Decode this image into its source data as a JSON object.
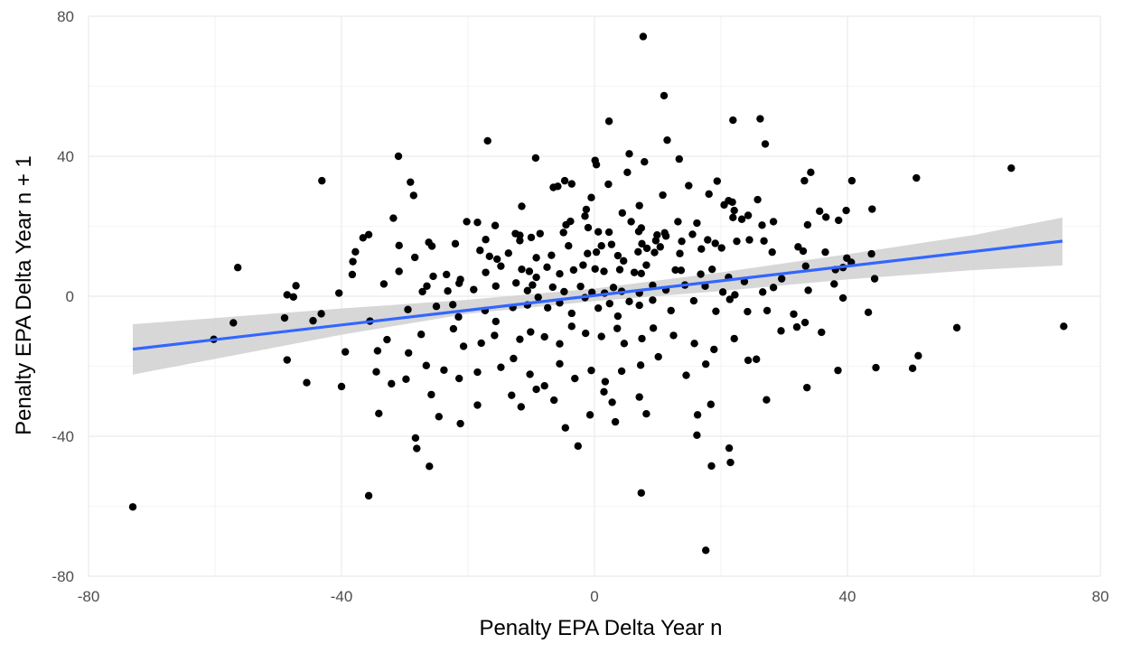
{
  "chart_data": {
    "type": "scatter",
    "title": "",
    "xlabel": "Penalty EPA Delta Year n",
    "ylabel": "Penalty EPA Delta Year n + 1",
    "xlim": [
      -80,
      80
    ],
    "ylim": [
      -80,
      80
    ],
    "x_ticks": [
      -80,
      -40,
      0,
      40,
      80
    ],
    "y_ticks": [
      -80,
      -40,
      0,
      40,
      80
    ],
    "grid": true,
    "legend": "none",
    "colors": {
      "points": "#000000",
      "fit_line": "#3366ff",
      "ribbon": "#d3d3d3",
      "grid": "#ebebeb"
    },
    "fit": {
      "method": "linear",
      "x_range": [
        -73,
        74
      ],
      "intercept": 0.2,
      "slope": 0.21,
      "ci_low": [
        [
          -73,
          -22.4
        ],
        [
          -40,
          -11.0
        ],
        [
          -20,
          -5.0
        ],
        [
          0,
          -1.4
        ],
        [
          20,
          1.5
        ],
        [
          40,
          4.8
        ],
        [
          60,
          7.5
        ],
        [
          74,
          8.8
        ]
      ],
      "ci_high": [
        [
          -73,
          -8.0
        ],
        [
          -40,
          -3.5
        ],
        [
          -20,
          -1.0
        ],
        [
          0,
          2.2
        ],
        [
          20,
          6.8
        ],
        [
          40,
          12.0
        ],
        [
          60,
          17.5
        ],
        [
          74,
          22.5
        ]
      ]
    },
    "points": [
      [
        7.7,
        74.2
      ],
      [
        11,
        57.3
      ],
      [
        2.3,
        50
      ],
      [
        21.9,
        50.3
      ],
      [
        26.2,
        50.7
      ],
      [
        11.5,
        44.6
      ],
      [
        27,
        43.5
      ],
      [
        -16.9,
        44.4
      ],
      [
        -31,
        40
      ],
      [
        -9.3,
        39.5
      ],
      [
        5.5,
        40.7
      ],
      [
        13.4,
        39.2
      ],
      [
        7.9,
        38.4
      ],
      [
        0.1,
        38.8
      ],
      [
        0.3,
        37.6
      ],
      [
        5.2,
        35.4
      ],
      [
        -29.1,
        32.6
      ],
      [
        -43.1,
        33
      ],
      [
        -4.7,
        33
      ],
      [
        -5.8,
        31.4
      ],
      [
        -6.5,
        31.1
      ],
      [
        -3.6,
        32.1
      ],
      [
        2.2,
        32
      ],
      [
        14.9,
        31.6
      ],
      [
        19.4,
        32.9
      ],
      [
        34.2,
        35.4
      ],
      [
        33.2,
        33
      ],
      [
        40.7,
        33
      ],
      [
        50.9,
        33.8
      ],
      [
        65.9,
        36.6
      ],
      [
        -28.6,
        28.8
      ],
      [
        -0.5,
        28.2
      ],
      [
        10.8,
        28.9
      ],
      [
        18.1,
        29.2
      ],
      [
        21.2,
        27.3
      ],
      [
        25.8,
        27.6
      ],
      [
        20.5,
        26.1
      ],
      [
        -11.5,
        25.7
      ],
      [
        -1.3,
        24.8
      ],
      [
        4.4,
        23.8
      ],
      [
        7.1,
        25.9
      ],
      [
        21.8,
        26.9
      ],
      [
        22.1,
        24.5
      ],
      [
        24.3,
        23.1
      ],
      [
        -1.5,
        22.9
      ],
      [
        -3.8,
        21.4
      ],
      [
        -31.8,
        22.3
      ],
      [
        -18.5,
        21.1
      ],
      [
        -20.2,
        21.3
      ],
      [
        -15.7,
        20.2
      ],
      [
        -4.5,
        20.4
      ],
      [
        5.8,
        21.3
      ],
      [
        13.2,
        21.3
      ],
      [
        16.2,
        20.9
      ],
      [
        21.9,
        22.5
      ],
      [
        23.3,
        22
      ],
      [
        28.3,
        21.3
      ],
      [
        26.5,
        20.3
      ],
      [
        35.6,
        24.3
      ],
      [
        36.6,
        22.6
      ],
      [
        39.8,
        24.5
      ],
      [
        43.9,
        24.9
      ],
      [
        38.6,
        21.7
      ],
      [
        33.7,
        20.4
      ],
      [
        -26.2,
        15.4
      ],
      [
        -11.8,
        15.9
      ],
      [
        -11.8,
        17.4
      ],
      [
        -12.5,
        17.9
      ],
      [
        -10,
        16.8
      ],
      [
        -8.6,
        17.9
      ],
      [
        -4.9,
        18.2
      ],
      [
        -1,
        19.6
      ],
      [
        0.6,
        18.4
      ],
      [
        2.3,
        18.3
      ],
      [
        7,
        18.5
      ],
      [
        7.4,
        19.5
      ],
      [
        9.7,
        15.9
      ],
      [
        7.5,
        15
      ],
      [
        9.9,
        17.5
      ],
      [
        11.1,
        18.1
      ],
      [
        11.3,
        17.2
      ],
      [
        13.8,
        15.7
      ],
      [
        15.5,
        17.7
      ],
      [
        17.9,
        16.1
      ],
      [
        19.1,
        15.1
      ],
      [
        22.5,
        15.7
      ],
      [
        24.5,
        16.1
      ],
      [
        26.8,
        15.8
      ],
      [
        -35.7,
        17.6
      ],
      [
        -36.6,
        16.7
      ],
      [
        -37.8,
        12.7
      ],
      [
        -30.9,
        14.5
      ],
      [
        -28.4,
        11.1
      ],
      [
        -25.7,
        14.3
      ],
      [
        -22,
        15
      ],
      [
        -17.2,
        16.2
      ],
      [
        -18.1,
        13.1
      ],
      [
        -16.6,
        11.4
      ],
      [
        -15.4,
        10.6
      ],
      [
        -13.6,
        12.3
      ],
      [
        -9.2,
        11
      ],
      [
        -6.8,
        11.7
      ],
      [
        -4.1,
        14.4
      ],
      [
        -1.1,
        12.2
      ],
      [
        0.3,
        12.6
      ],
      [
        1.1,
        14.4
      ],
      [
        2.7,
        14.8
      ],
      [
        3.7,
        11.6
      ],
      [
        4.6,
        10.1
      ],
      [
        6.9,
        12.7
      ],
      [
        8.3,
        13.7
      ],
      [
        9.5,
        12.5
      ],
      [
        10.4,
        14.1
      ],
      [
        13.5,
        12.2
      ],
      [
        16.9,
        13.5
      ],
      [
        20.1,
        13.8
      ],
      [
        28.1,
        12.6
      ],
      [
        32.2,
        14.1
      ],
      [
        33,
        12.9
      ],
      [
        36.5,
        12.6
      ],
      [
        39.9,
        10.9
      ],
      [
        43.8,
        12.1
      ],
      [
        -56.4,
        8.2
      ],
      [
        -38.2,
        9.9
      ],
      [
        -38.3,
        6.2
      ],
      [
        -30.9,
        7.1
      ],
      [
        -25.5,
        5.7
      ],
      [
        -23.4,
        6.2
      ],
      [
        -21.2,
        4.8
      ],
      [
        -17.2,
        6.8
      ],
      [
        -14.8,
        8.6
      ],
      [
        -11.5,
        7.7
      ],
      [
        -10.3,
        7.1
      ],
      [
        -9.2,
        5.4
      ],
      [
        -7.5,
        8.3
      ],
      [
        -5.5,
        6.4
      ],
      [
        -3.3,
        7.5
      ],
      [
        -1.8,
        8.9
      ],
      [
        0.1,
        7.8
      ],
      [
        1.5,
        7.1
      ],
      [
        4,
        7.6
      ],
      [
        6.3,
        6.8
      ],
      [
        7.4,
        6.5
      ],
      [
        8.2,
        8.9
      ],
      [
        12.8,
        7.5
      ],
      [
        13.7,
        7.4
      ],
      [
        16.8,
        6.3
      ],
      [
        18.6,
        7.7
      ],
      [
        21.2,
        5.4
      ],
      [
        23.7,
        4.2
      ],
      [
        29.6,
        5
      ],
      [
        33.4,
        8.6
      ],
      [
        38.1,
        7.6
      ],
      [
        39.3,
        8.2
      ],
      [
        40.6,
        9.7
      ],
      [
        44.3,
        5
      ],
      [
        -48.6,
        0.4
      ],
      [
        -47.2,
        3
      ],
      [
        -40.4,
        0.9
      ],
      [
        -33.3,
        3.5
      ],
      [
        -27.2,
        1.3
      ],
      [
        -26.5,
        2.9
      ],
      [
        -23.2,
        1.5
      ],
      [
        -21.4,
        3.7
      ],
      [
        -19.1,
        1.9
      ],
      [
        -15.6,
        2.9
      ],
      [
        -12.4,
        3.8
      ],
      [
        -10.6,
        1.6
      ],
      [
        -9.8,
        3.2
      ],
      [
        -6.6,
        2.6
      ],
      [
        -4.8,
        1.3
      ],
      [
        -2.2,
        2.8
      ],
      [
        -0.4,
        1.1
      ],
      [
        1.6,
        0.9
      ],
      [
        3,
        2.5
      ],
      [
        4.3,
        1.4
      ],
      [
        7.1,
        0.9
      ],
      [
        9.2,
        3.1
      ],
      [
        11.3,
        1.8
      ],
      [
        14.3,
        3.2
      ],
      [
        17.5,
        2.9
      ],
      [
        20.3,
        1.2
      ],
      [
        22.2,
        0.4
      ],
      [
        26.6,
        1.2
      ],
      [
        28.3,
        2.5
      ],
      [
        33.8,
        1.7
      ],
      [
        37.9,
        3.5
      ],
      [
        -57.1,
        -7.6
      ],
      [
        -49,
        -6.2
      ],
      [
        -47.6,
        -0.2
      ],
      [
        -43.2,
        -5
      ],
      [
        -44.5,
        -7
      ],
      [
        -35.5,
        -7.1
      ],
      [
        -29.5,
        -3.8
      ],
      [
        -25,
        -2.9
      ],
      [
        -22.4,
        -2.4
      ],
      [
        -21.5,
        -5.9
      ],
      [
        -17.3,
        -4.1
      ],
      [
        -15.6,
        -7.2
      ],
      [
        -12.9,
        -3.2
      ],
      [
        -10.6,
        -2.5
      ],
      [
        -8.9,
        -0.3
      ],
      [
        -7.4,
        -3.3
      ],
      [
        -5.5,
        -1.9
      ],
      [
        -3.6,
        -4.9
      ],
      [
        -1.5,
        -0.4
      ],
      [
        0.6,
        -3.4
      ],
      [
        2.4,
        -2.1
      ],
      [
        3.7,
        -5.7
      ],
      [
        5.5,
        -1.5
      ],
      [
        7.1,
        -2.6
      ],
      [
        9.2,
        -1.1
      ],
      [
        12.1,
        -4.1
      ],
      [
        15.7,
        -1.3
      ],
      [
        19.2,
        -4.3
      ],
      [
        21.4,
        -0.9
      ],
      [
        24.2,
        -4.4
      ],
      [
        27.3,
        -4.1
      ],
      [
        31.5,
        -5.1
      ],
      [
        33.3,
        -7.5
      ],
      [
        39.3,
        -0.5
      ],
      [
        43.3,
        -4.6
      ],
      [
        -60.2,
        -12.3
      ],
      [
        -48.6,
        -18.2
      ],
      [
        -39.4,
        -15.9
      ],
      [
        -34.3,
        -15.6
      ],
      [
        -32.8,
        -12.4
      ],
      [
        -29.4,
        -16.2
      ],
      [
        -27.4,
        -10.9
      ],
      [
        -22.3,
        -9.3
      ],
      [
        -20.7,
        -14.3
      ],
      [
        -17.9,
        -13.4
      ],
      [
        -15.8,
        -11.2
      ],
      [
        -11.8,
        -12.3
      ],
      [
        -10.1,
        -10.2
      ],
      [
        -7.9,
        -11.6
      ],
      [
        -5.5,
        -13.6
      ],
      [
        -3.6,
        -8.6
      ],
      [
        -1.4,
        -10.6
      ],
      [
        1.1,
        -11.5
      ],
      [
        3.6,
        -9.2
      ],
      [
        4.7,
        -13.5
      ],
      [
        7.5,
        -12.1
      ],
      [
        9.3,
        -9.1
      ],
      [
        12.5,
        -11.2
      ],
      [
        15.8,
        -13.5
      ],
      [
        18.9,
        -15.2
      ],
      [
        22.1,
        -12.1
      ],
      [
        25.6,
        -18
      ],
      [
        29.5,
        -9.9
      ],
      [
        32,
        -8.8
      ],
      [
        35.9,
        -10.3
      ],
      [
        -45.5,
        -24.7
      ],
      [
        -40,
        -25.8
      ],
      [
        -34.5,
        -21.6
      ],
      [
        -32.1,
        -25
      ],
      [
        -29.8,
        -23.7
      ],
      [
        -26.6,
        -19.8
      ],
      [
        -23.8,
        -21.1
      ],
      [
        -21.4,
        -23.5
      ],
      [
        -18.5,
        -21.7
      ],
      [
        -14.8,
        -20.3
      ],
      [
        -12.8,
        -17.8
      ],
      [
        -10.2,
        -22.3
      ],
      [
        -7.9,
        -25.6
      ],
      [
        -5.5,
        -19.3
      ],
      [
        -3.1,
        -23.5
      ],
      [
        -0.5,
        -21.2
      ],
      [
        1.7,
        -24.4
      ],
      [
        4.3,
        -21.4
      ],
      [
        7.3,
        -19.7
      ],
      [
        10.1,
        -17.3
      ],
      [
        14.5,
        -22.6
      ],
      [
        17.6,
        -19.4
      ],
      [
        24.3,
        -18.3
      ],
      [
        33.6,
        -26.1
      ],
      [
        38.5,
        -21.2
      ],
      [
        44.5,
        -20.4
      ],
      [
        50.3,
        -20.6
      ],
      [
        -34.1,
        -33.5
      ],
      [
        -28.3,
        -40.5
      ],
      [
        -28.1,
        -43.5
      ],
      [
        -26.1,
        -48.6
      ],
      [
        -25.8,
        -28.1
      ],
      [
        -24.6,
        -34.4
      ],
      [
        -21.2,
        -36.4
      ],
      [
        -18.5,
        -31.1
      ],
      [
        -13.1,
        -28.3
      ],
      [
        -11.6,
        -31.6
      ],
      [
        -9.2,
        -26.6
      ],
      [
        -6.4,
        -29.7
      ],
      [
        -4.6,
        -37.6
      ],
      [
        -2.6,
        -42.8
      ],
      [
        -0.7,
        -33.9
      ],
      [
        1.5,
        -27.3
      ],
      [
        2.8,
        -30.3
      ],
      [
        3.3,
        -35.9
      ],
      [
        7.1,
        -28.8
      ],
      [
        8.2,
        -33.6
      ],
      [
        16.2,
        -39.7
      ],
      [
        16.3,
        -33.9
      ],
      [
        18.4,
        -30.9
      ],
      [
        21.3,
        -43.4
      ],
      [
        21.5,
        -47.5
      ],
      [
        27.2,
        -29.6
      ],
      [
        7.4,
        -56.2
      ],
      [
        18.5,
        -48.5
      ],
      [
        17.6,
        -72.6
      ],
      [
        -35.7,
        -57
      ],
      [
        -73,
        -60.2
      ],
      [
        57.3,
        -9
      ],
      [
        74.2,
        -8.6
      ],
      [
        51.2,
        -17
      ]
    ]
  }
}
